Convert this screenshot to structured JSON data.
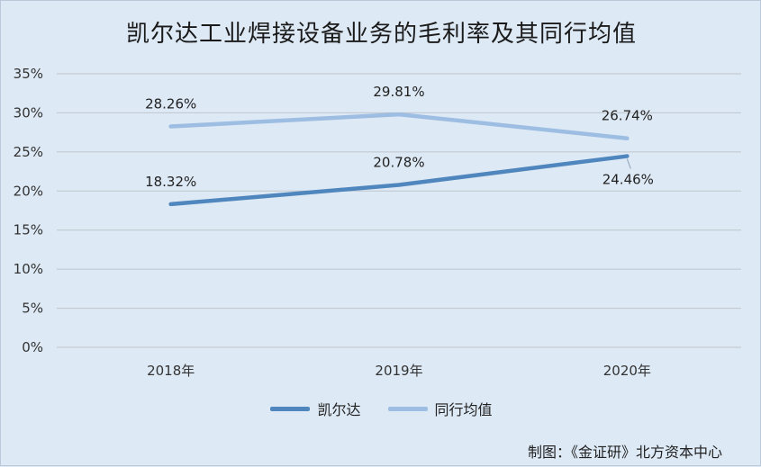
{
  "chart_data": {
    "type": "line",
    "title": "凯尔达工业焊接设备业务的毛利率及其同行均值",
    "categories": [
      "2018年",
      "2019年",
      "2020年"
    ],
    "ylim": [
      0,
      35
    ],
    "yticks": [
      "0%",
      "5%",
      "10%",
      "15%",
      "20%",
      "25%",
      "30%",
      "35%"
    ],
    "ytick_values": [
      0,
      5,
      10,
      15,
      20,
      25,
      30,
      35
    ],
    "grid": true,
    "legend_position": "bottom",
    "series": [
      {
        "name": "凯尔达",
        "values": [
          18.32,
          20.78,
          24.46
        ],
        "labels": [
          "18.32%",
          "20.78%",
          "24.46%"
        ],
        "color": "#4f86bd"
      },
      {
        "name": "同行均值",
        "values": [
          28.26,
          29.81,
          26.74
        ],
        "labels": [
          "28.26%",
          "29.81%",
          "26.74%"
        ],
        "color": "#9dbde3"
      }
    ]
  },
  "source_note": "制图：《金证研》北方资本中心"
}
